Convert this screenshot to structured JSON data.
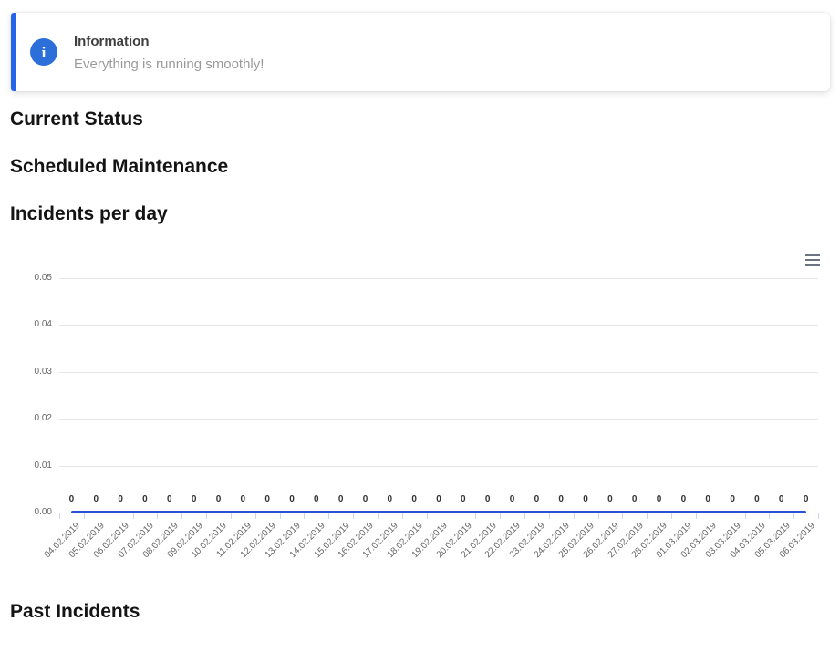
{
  "banner": {
    "title": "Information",
    "message": "Everything is running smoothly!",
    "icon_glyph": "i"
  },
  "sections": {
    "current_status": "Current Status",
    "scheduled_maintenance": "Scheduled Maintenance",
    "incidents_per_day": "Incidents per day",
    "past_incidents": "Past Incidents"
  },
  "icons": {
    "banner_icon": "info-circle-icon",
    "chart_menu_icon": "hamburger-menu-icon"
  },
  "colors": {
    "banner_accent": "#2563eb",
    "banner_icon_bg": "#2d6fd9",
    "series": "#2b50d8",
    "grid": "#e6e6e6",
    "axis": "#ccd6eb",
    "tick_label": "#666666",
    "data_label": "#333333",
    "menu_icon": "#6b7280"
  },
  "chart_data": {
    "type": "line",
    "title": "",
    "xlabel": "",
    "ylabel": "",
    "grid": true,
    "legend": false,
    "data_labels": true,
    "ylim": [
      0,
      0.05
    ],
    "ytick_labels": [
      "0.00",
      "0.01",
      "0.02",
      "0.03",
      "0.04",
      "0.05"
    ],
    "categories": [
      "04.02.2019",
      "05.02.2019",
      "06.02.2019",
      "07.02.2019",
      "08.02.2019",
      "09.02.2019",
      "10.02.2019",
      "11.02.2019",
      "12.02.2019",
      "13.02.2019",
      "14.02.2019",
      "15.02.2019",
      "16.02.2019",
      "17.02.2019",
      "18.02.2019",
      "19.02.2019",
      "20.02.2019",
      "21.02.2019",
      "22.02.2019",
      "23.02.2019",
      "24.02.2019",
      "25.02.2019",
      "26.02.2019",
      "27.02.2019",
      "28.02.2019",
      "01.03.2019",
      "02.03.2019",
      "03.03.2019",
      "04.03.2019",
      "05.03.2019",
      "06.03.2019"
    ],
    "values": [
      0,
      0,
      0,
      0,
      0,
      0,
      0,
      0,
      0,
      0,
      0,
      0,
      0,
      0,
      0,
      0,
      0,
      0,
      0,
      0,
      0,
      0,
      0,
      0,
      0,
      0,
      0,
      0,
      0,
      0,
      0
    ]
  }
}
